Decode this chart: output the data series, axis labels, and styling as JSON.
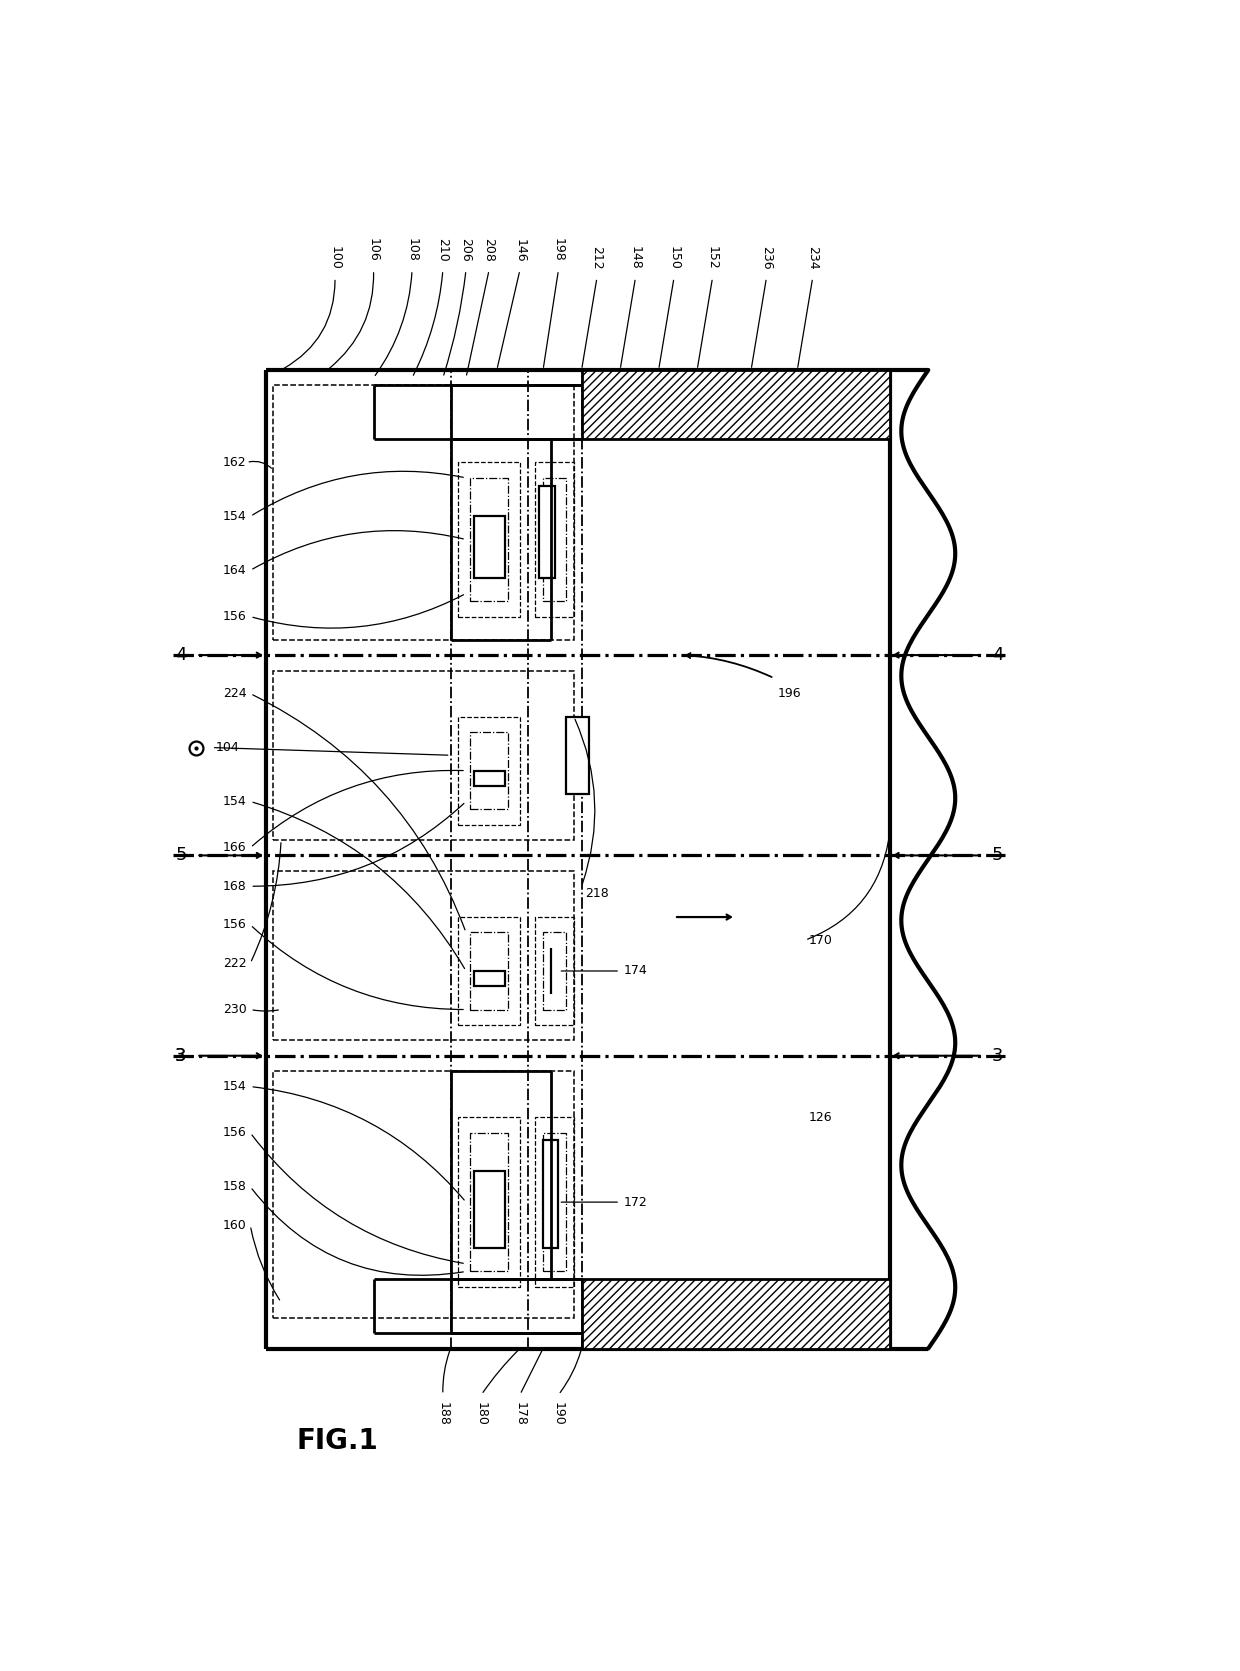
{
  "fig_width": 12.4,
  "fig_height": 16.71,
  "bg_color": "#ffffff"
}
